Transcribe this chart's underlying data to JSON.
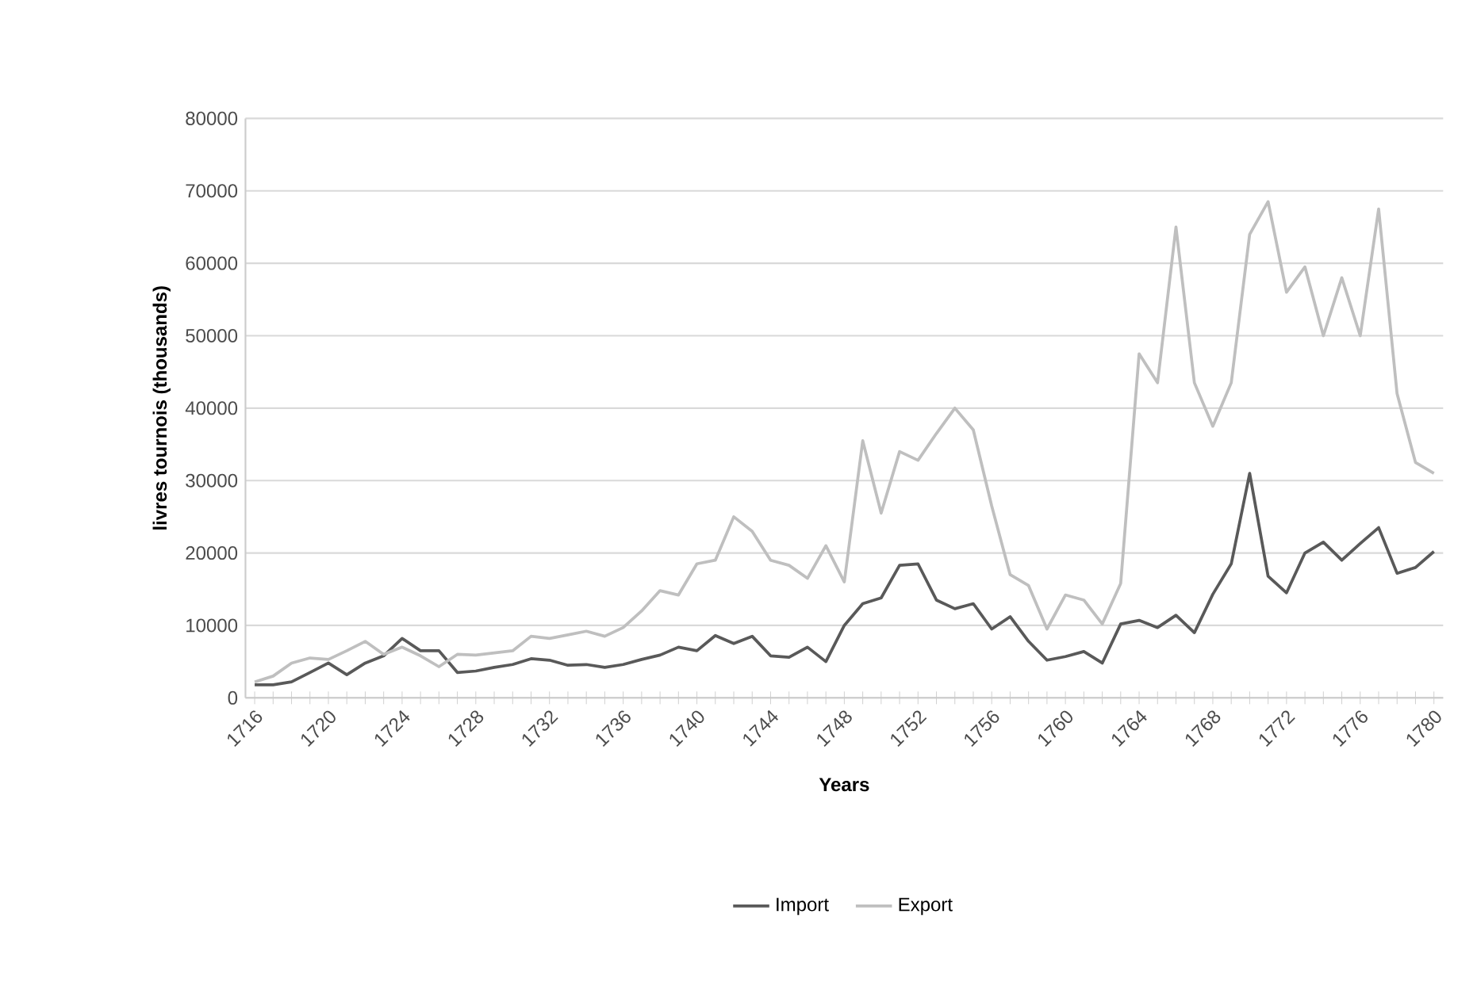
{
  "chart_data": {
    "type": "line",
    "xlabel": "Years",
    "ylabel": "livres tournois (thousands)",
    "categories": [
      "1716",
      null,
      null,
      null,
      "1720",
      null,
      null,
      null,
      "1724",
      null,
      null,
      null,
      "1728",
      null,
      null,
      null,
      "1732",
      null,
      null,
      null,
      "1736",
      null,
      null,
      null,
      "1740",
      null,
      null,
      null,
      "1744",
      null,
      null,
      null,
      "1748",
      null,
      null,
      null,
      "1752",
      null,
      null,
      null,
      "1756",
      null,
      null,
      null,
      "1760",
      null,
      null,
      null,
      "1764",
      null,
      null,
      null,
      "1768",
      null,
      null,
      null,
      "1772",
      null,
      null,
      null,
      "1776",
      null,
      null,
      null,
      "1780"
    ],
    "series": [
      {
        "name": "Import",
        "color": "#595959",
        "values": [
          1800,
          1800,
          2200,
          3500,
          4800,
          3200,
          4800,
          5800,
          8200,
          6500,
          6500,
          3500,
          3700,
          4200,
          4600,
          5400,
          5200,
          4500,
          4600,
          4200,
          4600,
          5300,
          5900,
          7000,
          6500,
          8600,
          7500,
          8500,
          5800,
          5600,
          7000,
          5000,
          10000,
          13000,
          13800,
          18300,
          18500,
          13500,
          12300,
          13000,
          9500,
          11200,
          7800,
          5200,
          5700,
          6400,
          4800,
          10200,
          10700,
          9700,
          11400,
          9000,
          14300,
          18500,
          31000,
          16800,
          14500,
          20000,
          21500,
          19000,
          21300,
          23500,
          17200,
          18000,
          20200
        ]
      },
      {
        "name": "Export",
        "color": "#bfbfbf",
        "values": [
          2200,
          3000,
          4800,
          5500,
          5300,
          6500,
          7800,
          6000,
          7000,
          5800,
          4300,
          6000,
          5900,
          6200,
          6500,
          8500,
          8200,
          8700,
          9200,
          8500,
          9700,
          12000,
          14800,
          14200,
          18500,
          19000,
          25000,
          23000,
          19000,
          18300,
          16500,
          21000,
          16000,
          35500,
          25500,
          34000,
          32800,
          36500,
          40000,
          37000,
          26500,
          17000,
          15500,
          9500,
          14200,
          13500,
          10200,
          15800,
          47500,
          43500,
          65000,
          43500,
          37500,
          43500,
          64000,
          68500,
          56000,
          59500,
          50000,
          58000,
          50000,
          67500,
          42000,
          32500,
          31000
        ]
      }
    ],
    "ylim": [
      0,
      80000
    ],
    "yticks": [
      0,
      10000,
      20000,
      30000,
      40000,
      50000,
      60000,
      70000,
      80000
    ],
    "grid": "y",
    "legend": "bottom",
    "marker": "none",
    "line_style": "solid"
  }
}
